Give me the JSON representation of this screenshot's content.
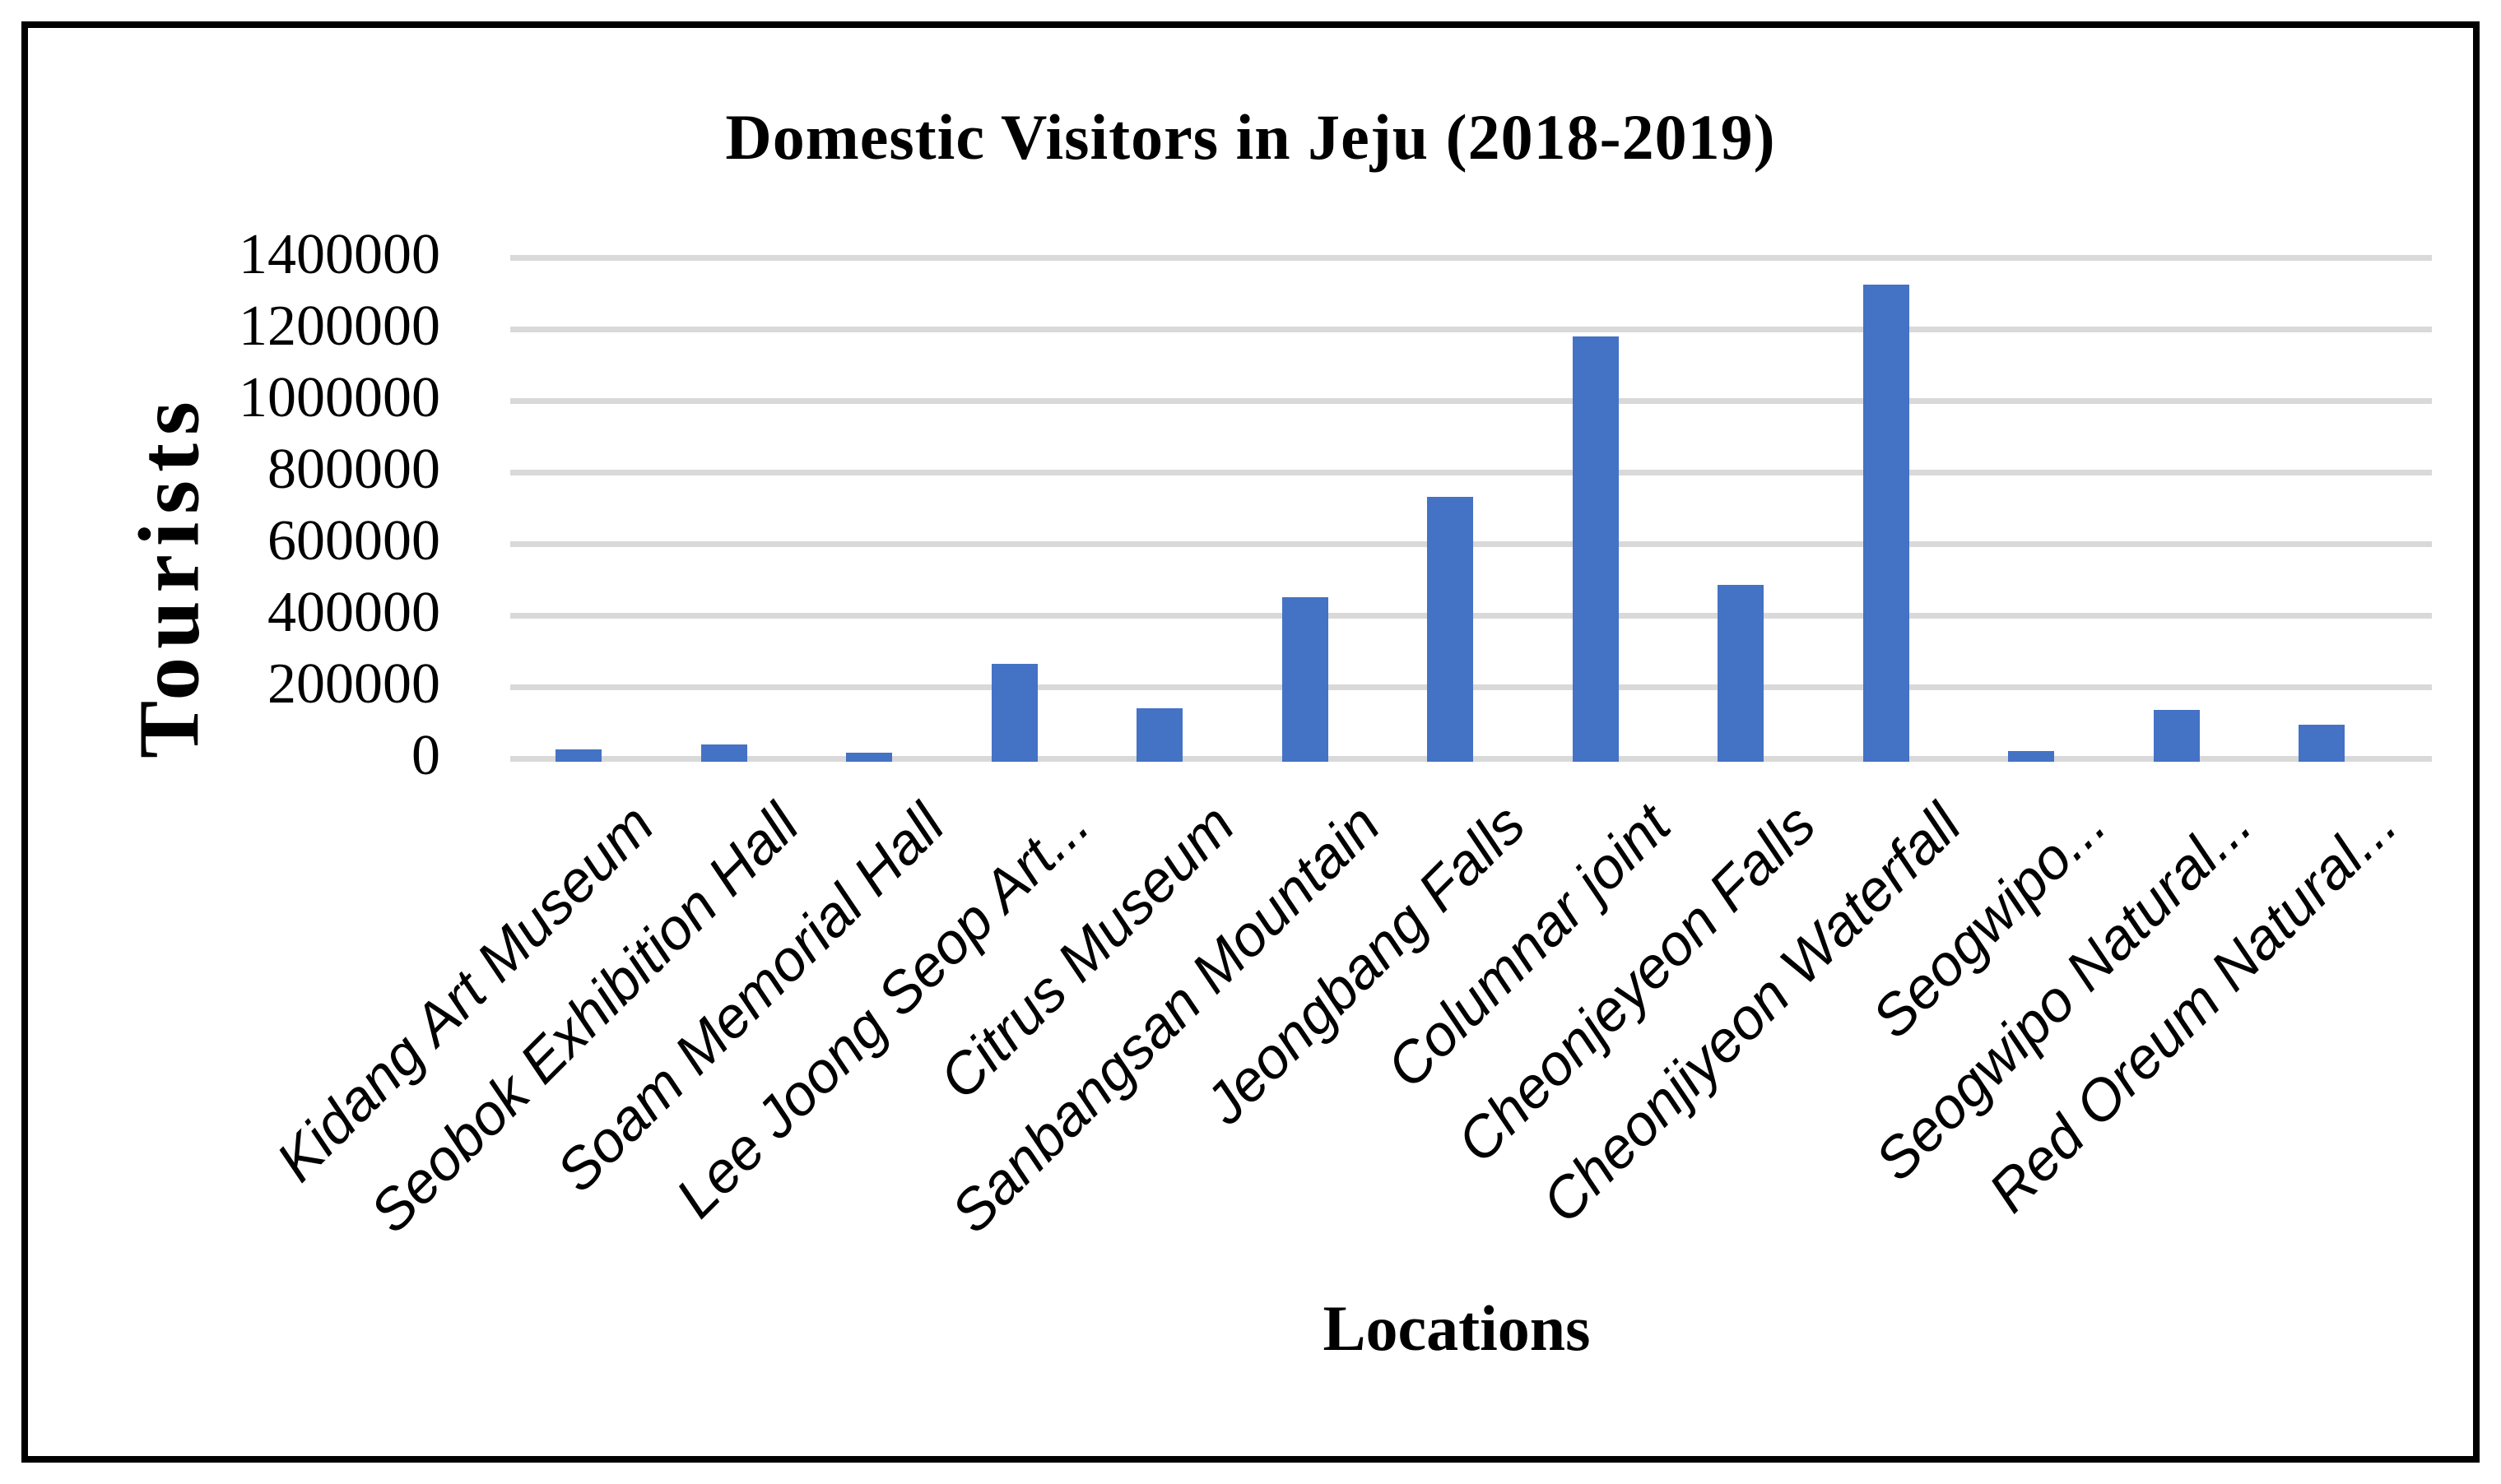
{
  "figure": {
    "title": "Domestic Visitors in Jeju (2018-2019)"
  },
  "chart_data": {
    "type": "bar",
    "title": "Domestic Visitors in Jeju (2018-2019)",
    "xlabel": "Locations",
    "ylabel": "Tourists",
    "categories": [
      "Kidang Art Museum",
      "Seobok Exhibition Hall",
      "Soam Memorial Hall",
      "Lee Joong Seop Art...",
      "Citrus Museum",
      "Sanbangsan Mountain",
      "Jeongbang Falls",
      "Columnar joint",
      "Cheonjeyeon Falls",
      "Cheonjiyeon Waterfall",
      "Seogwipo...",
      "Seogwipo Natural...",
      "Red Oreum Natural..."
    ],
    "values": [
      25000,
      40000,
      15000,
      265000,
      140000,
      450000,
      730000,
      1180000,
      485000,
      1325000,
      20000,
      135000,
      95000
    ],
    "ylim": [
      0,
      1400000
    ],
    "ytick_interval": 200000,
    "ytick_labels": [
      "1400000",
      "1200000",
      "1000000",
      "800000",
      "600000",
      "400000",
      "200000",
      "0"
    ],
    "grid": true,
    "legend": "none",
    "bar_color": "#4472C4",
    "gridline_color": "#D9D9D9",
    "text_color": "#000000",
    "border_color": "#000000"
  }
}
